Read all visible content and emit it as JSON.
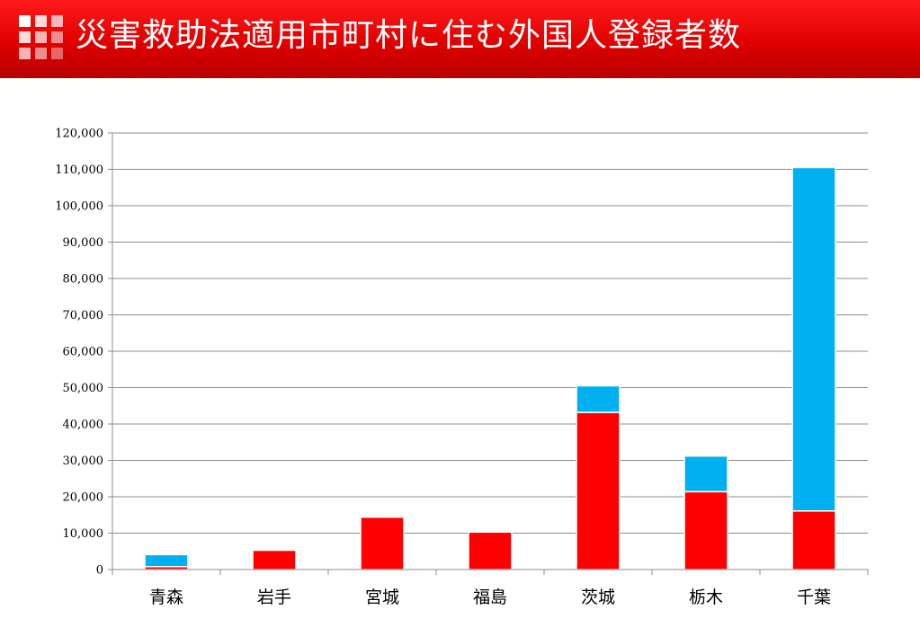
{
  "header": {
    "title": "災害救助法適用市町村に住む外国人登録者数",
    "icon": "grid-logo-icon"
  },
  "colors": {
    "series_lower": "#ff0000",
    "series_upper": "#00b0f0",
    "header_bg": "#e00000"
  },
  "chart_data": {
    "type": "bar",
    "stacked": true,
    "categories": [
      "青森",
      "岩手",
      "宮城",
      "福島",
      "茨城",
      "栃木",
      "千葉"
    ],
    "series": [
      {
        "values": [
          800,
          5300,
          14400,
          10300,
          43200,
          21400,
          16100
        ]
      },
      {
        "values": [
          3300,
          0,
          0,
          0,
          7300,
          9800,
          94400
        ]
      }
    ],
    "ylim": [
      0,
      120000
    ],
    "yticks": [
      "0",
      "10,000",
      "20,000",
      "30,000",
      "40,000",
      "50,000",
      "60,000",
      "70,000",
      "80,000",
      "90,000",
      "100,000",
      "110,000",
      "120,000"
    ],
    "grid": true,
    "legend": "none"
  }
}
